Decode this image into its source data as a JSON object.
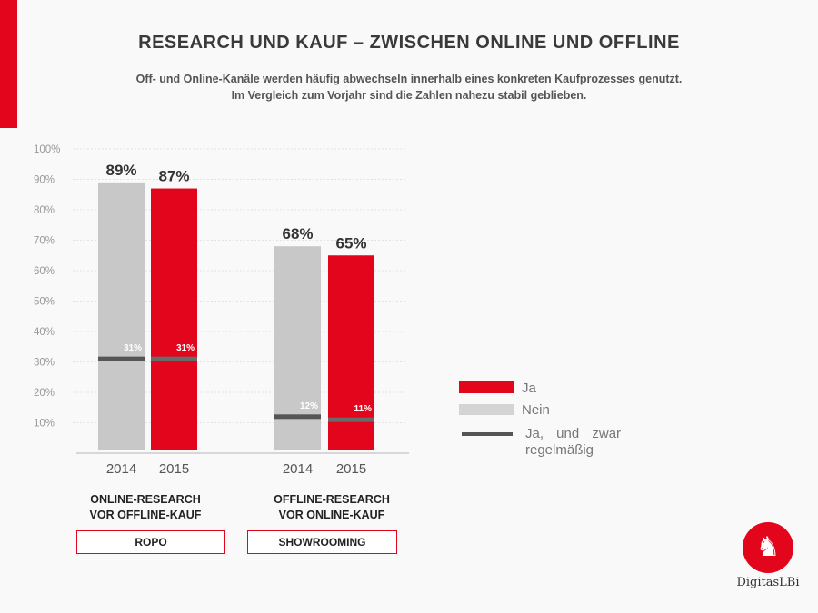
{
  "header": {
    "title": "RESEARCH UND KAUF – ZWISCHEN ONLINE UND OFFLINE",
    "subtitle_line1": "Off- und Online-Kanäle werden häufig abwechseln innerhalb eines konkreten Kaufprozesses genutzt.",
    "subtitle_line2": "Im Vergleich zum Vorjahr sind die Zahlen nahezu stabil geblieben."
  },
  "chart_data": {
    "type": "bar",
    "ylim": [
      0,
      100
    ],
    "yticks": [
      "10%",
      "20%",
      "30%",
      "40%",
      "50%",
      "60%",
      "70%",
      "80%",
      "90%",
      "100%"
    ],
    "grid": true,
    "groups": [
      {
        "label_line1": "ONLINE-RESEARCH",
        "label_line2": "VOR OFFLINE-KAUF",
        "tag": "ROPO",
        "bars": [
          {
            "year": "2014",
            "value": 89,
            "label": "89%",
            "regular": 31,
            "regular_label": "31%",
            "color": "#c8c8c8"
          },
          {
            "year": "2015",
            "value": 87,
            "label": "87%",
            "regular": 31,
            "regular_label": "31%",
            "color": "#e3051b"
          }
        ]
      },
      {
        "label_line1": "OFFLINE-RESEARCH",
        "label_line2": "VOR ONLINE-KAUF",
        "tag": "SHOWROOMING",
        "bars": [
          {
            "year": "2014",
            "value": 68,
            "label": "68%",
            "regular": 12,
            "regular_label": "12%",
            "color": "#c8c8c8"
          },
          {
            "year": "2015",
            "value": 65,
            "label": "65%",
            "regular": 11,
            "regular_label": "11%",
            "color": "#e3051b"
          }
        ]
      }
    ],
    "legend": [
      {
        "label": "Ja",
        "color": "#e3051b"
      },
      {
        "label": "Nein",
        "color": "#d4d4d4"
      },
      {
        "label_line1": "Ja, und zwar",
        "label_line2": "regelmäßig",
        "color": "#555555"
      }
    ],
    "legend_position": "right"
  },
  "logo": {
    "text": "DigitasLBi",
    "icon": "unicorn-icon"
  }
}
